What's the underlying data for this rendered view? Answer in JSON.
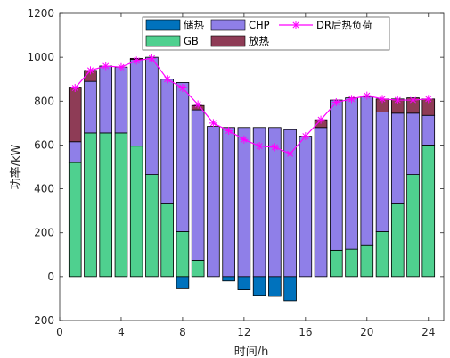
{
  "chart_data": {
    "type": "bar",
    "stacked": true,
    "x": [
      1,
      2,
      3,
      4,
      5,
      6,
      7,
      8,
      9,
      10,
      11,
      12,
      13,
      14,
      15,
      16,
      17,
      18,
      19,
      20,
      21,
      22,
      23,
      24
    ],
    "xlabel": "时间/h",
    "ylabel": "功率/kW",
    "xlim": [
      0,
      25
    ],
    "ylim": [
      -200,
      1200
    ],
    "xticks": [
      0,
      4,
      8,
      12,
      16,
      20,
      24
    ],
    "yticks": [
      -200,
      0,
      200,
      400,
      600,
      800,
      1000,
      1200
    ],
    "grid": false,
    "legend_position": "top",
    "series": [
      {
        "name": "GB",
        "color": "#4fd08f",
        "values": [
          520,
          655,
          655,
          655,
          595,
          465,
          335,
          205,
          75,
          0,
          0,
          0,
          0,
          0,
          0,
          0,
          0,
          120,
          125,
          145,
          205,
          335,
          465,
          600
        ]
      },
      {
        "name": "CHP",
        "color": "#8f7fe8",
        "values": [
          95,
          235,
          305,
          300,
          395,
          535,
          565,
          680,
          685,
          685,
          680,
          680,
          680,
          680,
          670,
          640,
          680,
          685,
          690,
          675,
          545,
          410,
          280,
          135
        ]
      },
      {
        "name": "放热",
        "color": "#8e3c56",
        "values": [
          245,
          50,
          0,
          0,
          5,
          0,
          0,
          0,
          20,
          0,
          0,
          0,
          0,
          0,
          0,
          0,
          35,
          0,
          0,
          0,
          60,
          65,
          70,
          75
        ]
      },
      {
        "name": "储热",
        "color": "#0072bd",
        "values": [
          0,
          0,
          0,
          0,
          0,
          0,
          0,
          -55,
          0,
          0,
          -20,
          -60,
          -85,
          -90,
          -110,
          0,
          0,
          0,
          0,
          0,
          0,
          0,
          0,
          0
        ]
      },
      {
        "name": "DR后热负荷",
        "type": "line",
        "color": "#ff00ff",
        "marker": "asterisk",
        "values": [
          860,
          940,
          960,
          955,
          985,
          995,
          900,
          860,
          785,
          700,
          665,
          625,
          595,
          590,
          560,
          640,
          715,
          795,
          810,
          825,
          810,
          805,
          805,
          810
        ]
      }
    ]
  }
}
